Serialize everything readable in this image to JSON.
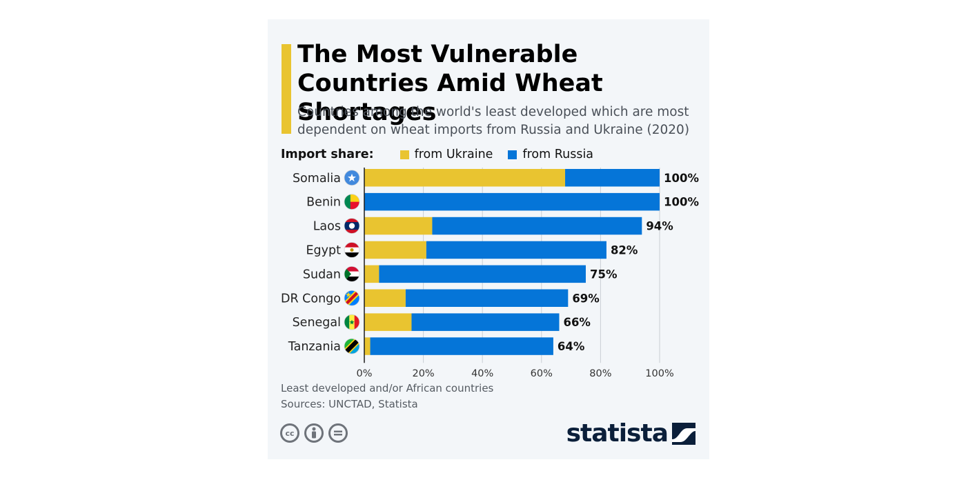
{
  "title": "The Most Vulnerable Countries Amid Wheat Shortages",
  "subtitle": "Countries among the world's least developed which are most dependent on wheat imports from Russia and Ukraine (2020)",
  "legend": {
    "title": "Import share:",
    "items": [
      {
        "label": "from Ukraine",
        "color": "#e9c430"
      },
      {
        "label": "from Russia",
        "color": "#0575d8"
      }
    ]
  },
  "chart_data": {
    "type": "bar",
    "orientation": "horizontal",
    "stacked": true,
    "categories": [
      "Somalia",
      "Benin",
      "Laos",
      "Egypt",
      "Sudan",
      "DR Congo",
      "Senegal",
      "Tanzania"
    ],
    "series": [
      {
        "name": "from Ukraine",
        "color": "#e9c430",
        "values": [
          68,
          0,
          23,
          21,
          5,
          14,
          16,
          2
        ]
      },
      {
        "name": "from Russia",
        "color": "#0575d8",
        "values": [
          32,
          100,
          71,
          61,
          70,
          55,
          50,
          62
        ]
      }
    ],
    "totals": [
      100,
      100,
      94,
      82,
      75,
      69,
      66,
      64
    ],
    "total_labels": [
      "100%",
      "100%",
      "94%",
      "82%",
      "75%",
      "69%",
      "66%",
      "64%"
    ],
    "xlim": [
      0,
      100
    ],
    "xticks": [
      0,
      20,
      40,
      60,
      80,
      100
    ],
    "xtick_labels": [
      "0%",
      "20%",
      "40%",
      "60%",
      "80%",
      "100%"
    ],
    "grid": true,
    "legend_position": "top",
    "flags": [
      "somalia-flag-icon",
      "benin-flag-icon",
      "laos-flag-icon",
      "egypt-flag-icon",
      "sudan-flag-icon",
      "dr-congo-flag-icon",
      "senegal-flag-icon",
      "tanzania-flag-icon"
    ]
  },
  "notes": [
    "Least developed and/or African countries",
    "Sources: UNCTAD, Statista"
  ],
  "brand": "statista"
}
